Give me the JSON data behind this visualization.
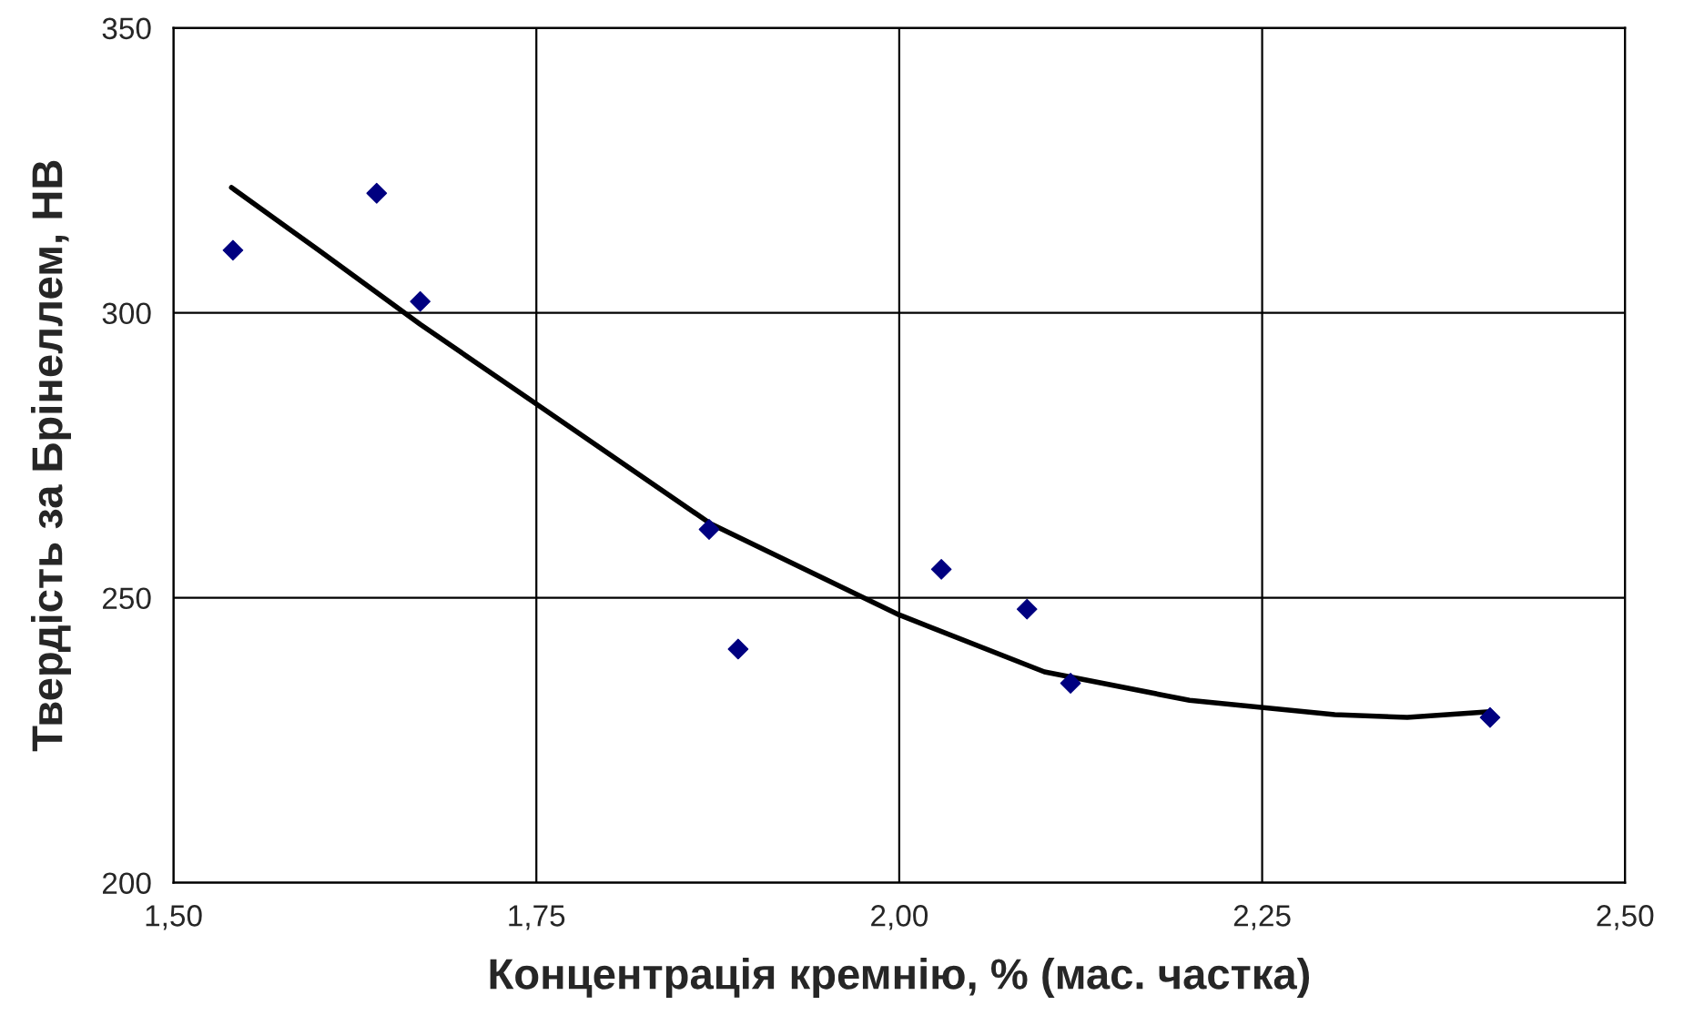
{
  "chart_data": {
    "type": "scatter",
    "xlabel": "Концентрація кремнію, % (мас. частка)",
    "ylabel": "Твердість за Брінеллем, НВ",
    "xlim": [
      1.5,
      2.5
    ],
    "ylim": [
      200,
      350
    ],
    "xticks": [
      {
        "value": 1.5,
        "label": "1,50"
      },
      {
        "value": 1.75,
        "label": "1,75"
      },
      {
        "value": 2.0,
        "label": "2,00"
      },
      {
        "value": 2.25,
        "label": "2,25"
      },
      {
        "value": 2.5,
        "label": "2,50"
      }
    ],
    "yticks": [
      200,
      250,
      300,
      350
    ],
    "grid": true,
    "legend": false,
    "series": [
      {
        "color": "#000080",
        "marker": "diamond",
        "x": [
          1.541,
          1.64,
          1.67,
          1.869,
          1.889,
          2.029,
          2.088,
          2.118,
          2.407
        ],
        "values": [
          311,
          321,
          302,
          262,
          241,
          255,
          248,
          235,
          229
        ]
      },
      {
        "type": "line",
        "color": "#000000",
        "marker": "none",
        "line_style": "solid",
        "x": [
          1.54,
          1.6,
          1.67,
          1.75,
          1.87,
          2.0,
          2.1,
          2.2,
          2.3,
          2.35,
          2.407
        ],
        "values": [
          322,
          311,
          298,
          284,
          263,
          247,
          237,
          232,
          229.5,
          229,
          230
        ]
      }
    ]
  }
}
